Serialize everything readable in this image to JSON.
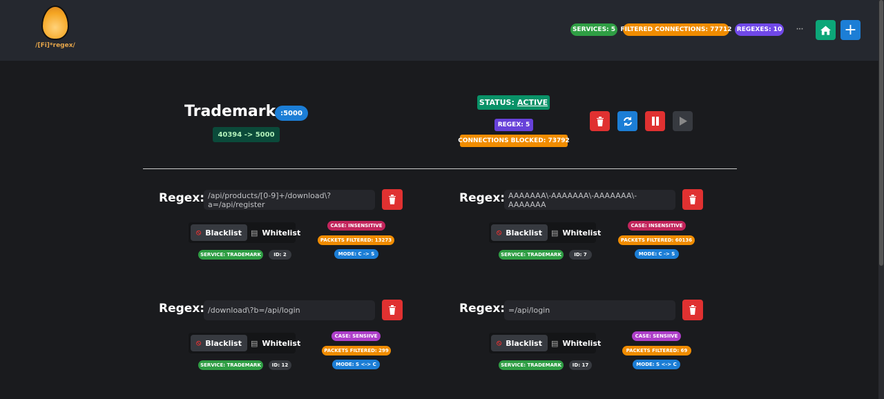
{
  "header": {
    "logo_text": "/[Fi]*regex/",
    "badges": [
      {
        "label": "SERVICES: 5",
        "color": "#2f9e44"
      },
      {
        "label": "FILTERED CONNECTIONS: 77712",
        "color": "#f08c00"
      },
      {
        "label": "REGEXES: 10",
        "color": "#7048e8"
      }
    ],
    "more": "···"
  },
  "service": {
    "name": "Trademark",
    "port": ":5000",
    "mapping": "40394 -> 5000",
    "status_label": "STATUS:",
    "status": "ACTIVE",
    "regex_count": "REGEX: 5",
    "blocked": "CONNECTIONS BLOCKED: 73792"
  },
  "regex_label": "Regex:",
  "mode_options": {
    "blacklist": "Blacklist",
    "whitelist": "Whitelist"
  },
  "regexes": [
    {
      "value": "/api/products/[0-9]+/download\\?a=/api/register",
      "case": "CASE: INSENSITIVE",
      "packets": "PACKETS FILTERED: 13273",
      "service": "SERVICE: TRADEMARK",
      "id": "ID: 2",
      "mode": "MODE: C -> S"
    },
    {
      "value": "AAAAAAA\\-AAAAAAA\\-AAAAAAA\\-AAAAAAA",
      "case": "CASE: INSENSITIVE",
      "packets": "PACKETS FILTERED: 60136",
      "service": "SERVICE: TRADEMARK",
      "id": "ID: 7",
      "mode": "MODE: C -> S"
    },
    {
      "value": "/download\\?b=/api/login",
      "case": "CASE: SENSIIVE",
      "packets": "PACKETS FILTERED: 299",
      "service": "SERVICE: TRADEMARK",
      "id": "ID: 12",
      "mode": "MODE: S <-> C"
    },
    {
      "value": "=/api/login",
      "case": "CASE: SENSIIVE",
      "packets": "PACKETS FILTERED: 69",
      "service": "SERVICE: TRADEMARK",
      "id": "ID: 17",
      "mode": "MODE: S <-> C"
    }
  ]
}
